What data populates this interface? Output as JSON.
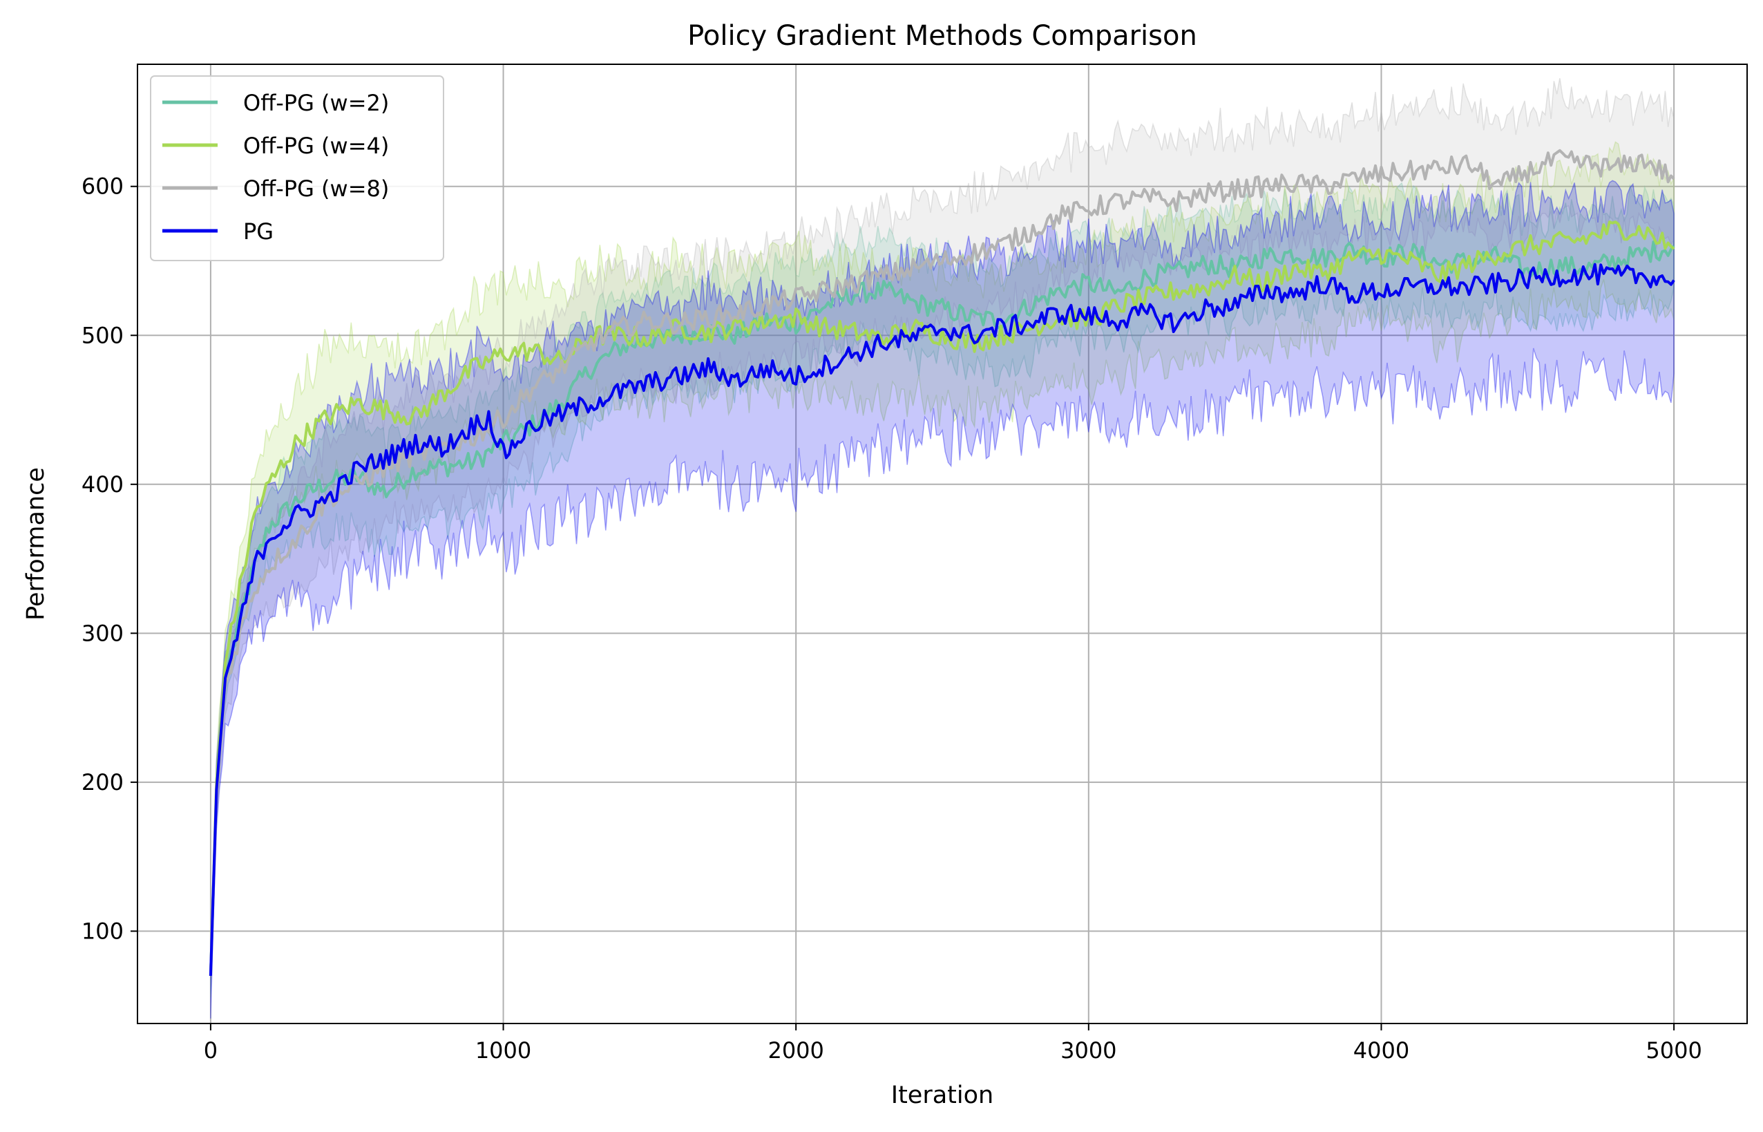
{
  "chart_data": {
    "type": "line",
    "title": "Policy Gradient Methods Comparison",
    "xlabel": "Iteration",
    "ylabel": "Performance",
    "xlim": [
      -250,
      5250
    ],
    "ylim": [
      38,
      682
    ],
    "xticks": [
      0,
      1000,
      2000,
      3000,
      4000,
      5000
    ],
    "yticks": [
      100,
      200,
      300,
      400,
      500,
      600
    ],
    "grid": true,
    "legend_position": "top-left",
    "series": [
      {
        "name": "Off-PG (w=2)",
        "color": "#66c2a5",
        "x": [
          0,
          20,
          50,
          100,
          150,
          200,
          300,
          400,
          500,
          600,
          700,
          800,
          900,
          1000,
          1100,
          1200,
          1300,
          1400,
          1500,
          1600,
          1700,
          1800,
          1900,
          2000,
          2100,
          2200,
          2300,
          2400,
          2500,
          2600,
          2700,
          2800,
          2900,
          3000,
          3100,
          3200,
          3300,
          3400,
          3500,
          3600,
          3700,
          3800,
          3900,
          4000,
          4100,
          4200,
          4300,
          4400,
          4500,
          4600,
          4700,
          4800,
          4900,
          5000
        ],
        "y": [
          70,
          195,
          270,
          310,
          345,
          372,
          390,
          402,
          405,
          395,
          410,
          412,
          415,
          428,
          440,
          455,
          478,
          492,
          497,
          500,
          503,
          500,
          510,
          508,
          520,
          528,
          530,
          522,
          518,
          512,
          510,
          520,
          530,
          535,
          528,
          540,
          542,
          548,
          545,
          553,
          555,
          552,
          558,
          552,
          556,
          548,
          550,
          553,
          542,
          547,
          545,
          550,
          555,
          560
        ],
        "band": 35
      },
      {
        "name": "Off-PG (w=4)",
        "color": "#a6d854",
        "x": [
          0,
          20,
          50,
          100,
          150,
          200,
          300,
          400,
          500,
          600,
          700,
          800,
          900,
          1000,
          1100,
          1200,
          1300,
          1400,
          1500,
          1600,
          1700,
          1800,
          1900,
          2000,
          2100,
          2200,
          2300,
          2400,
          2500,
          2600,
          2700,
          2800,
          2900,
          3000,
          3100,
          3200,
          3300,
          3400,
          3500,
          3600,
          3700,
          3800,
          3900,
          4000,
          4100,
          4200,
          4300,
          4400,
          4500,
          4600,
          4700,
          4800,
          4900,
          5000
        ],
        "y": [
          70,
          200,
          280,
          330,
          380,
          400,
          430,
          445,
          455,
          450,
          445,
          462,
          478,
          488,
          490,
          482,
          500,
          500,
          498,
          505,
          502,
          506,
          510,
          512,
          505,
          502,
          498,
          505,
          500,
          495,
          500,
          505,
          512,
          510,
          520,
          525,
          530,
          532,
          540,
          535,
          545,
          542,
          552,
          555,
          550,
          540,
          548,
          555,
          560,
          562,
          565,
          572,
          570,
          558
        ],
        "band": 45
      },
      {
        "name": "Off-PG (w=8)",
        "color": "#b3b3b3",
        "x": [
          0,
          20,
          50,
          100,
          150,
          200,
          300,
          400,
          500,
          600,
          700,
          800,
          900,
          1000,
          1100,
          1200,
          1300,
          1400,
          1500,
          1600,
          1700,
          1800,
          1900,
          2000,
          2100,
          2200,
          2300,
          2400,
          2500,
          2600,
          2700,
          2800,
          2900,
          3000,
          3100,
          3200,
          3300,
          3400,
          3500,
          3600,
          3700,
          3800,
          3900,
          4000,
          4100,
          4200,
          4300,
          4400,
          4500,
          4600,
          4700,
          4800,
          4900,
          5000
        ],
        "y": [
          70,
          190,
          265,
          300,
          330,
          345,
          365,
          390,
          400,
          412,
          420,
          425,
          432,
          445,
          465,
          478,
          495,
          505,
          510,
          508,
          512,
          515,
          520,
          525,
          530,
          535,
          540,
          545,
          550,
          555,
          560,
          570,
          580,
          585,
          590,
          592,
          590,
          595,
          598,
          600,
          602,
          600,
          605,
          608,
          610,
          612,
          615,
          600,
          610,
          618,
          615,
          612,
          618,
          605
        ],
        "band": 40
      },
      {
        "name": "PG",
        "color": "#0000ee",
        "x": [
          0,
          20,
          50,
          100,
          150,
          200,
          300,
          400,
          500,
          600,
          700,
          800,
          900,
          950,
          1000,
          1100,
          1200,
          1300,
          1400,
          1500,
          1600,
          1700,
          1800,
          1900,
          2000,
          2100,
          2200,
          2300,
          2400,
          2500,
          2600,
          2700,
          2800,
          2900,
          3000,
          3100,
          3200,
          3300,
          3400,
          3500,
          3600,
          3700,
          3800,
          3900,
          4000,
          4100,
          4200,
          4300,
          4400,
          4500,
          4600,
          4700,
          4800,
          4900,
          5000
        ],
        "y": [
          70,
          195,
          270,
          305,
          345,
          365,
          380,
          390,
          410,
          418,
          428,
          425,
          440,
          445,
          420,
          440,
          447,
          455,
          462,
          468,
          472,
          478,
          470,
          478,
          472,
          480,
          488,
          495,
          498,
          505,
          500,
          505,
          508,
          515,
          513,
          510,
          515,
          508,
          518,
          520,
          530,
          528,
          535,
          527,
          530,
          532,
          533,
          532,
          535,
          538,
          540,
          541,
          540,
          540,
          537
        ],
        "band": 50
      }
    ]
  }
}
